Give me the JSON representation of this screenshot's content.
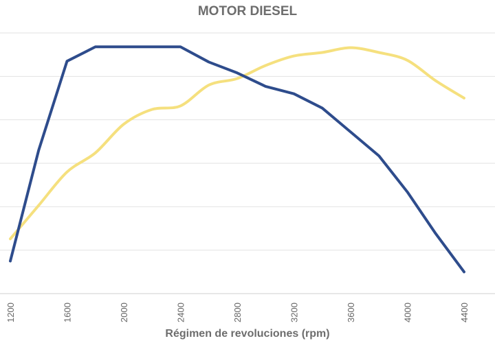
{
  "chart_data": {
    "type": "line",
    "title": "MOTOR DIESEL",
    "xlabel": "Régimen de revoluciones (rpm)",
    "ylabel": "",
    "x": [
      1200,
      1400,
      1600,
      1800,
      2000,
      2200,
      2400,
      2600,
      2800,
      3000,
      3200,
      3400,
      3600,
      3800,
      4000,
      4200,
      4400
    ],
    "x_ticks": [
      "1200",
      "1600",
      "2000",
      "2400",
      "2800",
      "3200",
      "3600",
      "4000",
      "4400"
    ],
    "xlim": [
      1200,
      4400
    ],
    "ylim": [
      0,
      6
    ],
    "grid": true,
    "legend": "none",
    "series": [
      {
        "color": "#2e4c8c",
        "values": [
          0.75,
          3.3,
          5.35,
          5.68,
          5.68,
          5.68,
          5.68,
          5.33,
          5.08,
          4.77,
          4.6,
          4.27,
          3.72,
          3.17,
          2.34,
          1.38,
          0.5
        ]
      },
      {
        "color": "#f5e07e",
        "values": [
          1.26,
          2.03,
          2.8,
          3.24,
          3.9,
          4.24,
          4.32,
          4.8,
          4.95,
          5.25,
          5.47,
          5.55,
          5.66,
          5.55,
          5.37,
          4.9,
          4.5
        ]
      }
    ]
  }
}
